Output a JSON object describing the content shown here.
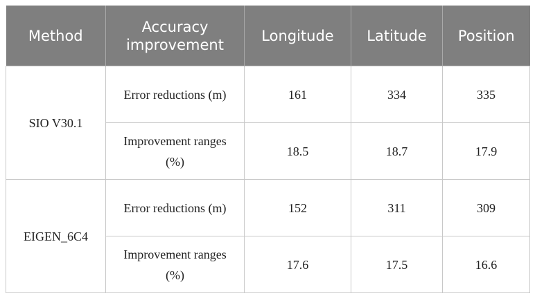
{
  "table": {
    "header": [
      "Method",
      "Accuracy improvement",
      "Longitude",
      "Latitude",
      "Position"
    ],
    "groups": [
      {
        "method": "SIO V30.1",
        "rows": [
          [
            "Error reductions (m)",
            "161",
            "334",
            "335"
          ],
          [
            "Improvement ranges (%)",
            "18.5",
            "18.7",
            "17.9"
          ]
        ]
      },
      {
        "method": "EIGEN_6C4",
        "rows": [
          [
            "Error reductions (m)",
            "152",
            "311",
            "309"
          ],
          [
            "Improvement ranges (%)",
            "17.6",
            "17.5",
            "16.6"
          ]
        ]
      }
    ]
  }
}
